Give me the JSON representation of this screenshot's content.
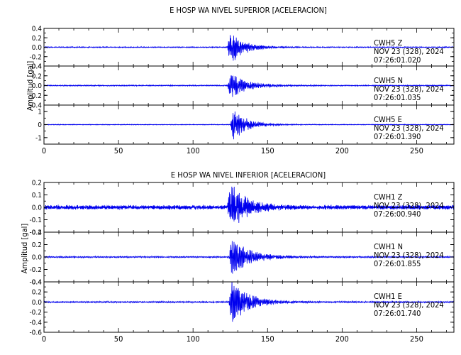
{
  "figure": {
    "title_top": "E HOSP WA NIVEL SUPERIOR [ACELERACION]",
    "title_bottom": "E HOSP WA NIVEL INFERIOR [ACELERACION]",
    "ylabel_top": "Amplitud [gal]",
    "ylabel_bottom": "Amplitud [gal]",
    "trace_color": "#0000ee",
    "axis_color": "#000000"
  },
  "chart_data": [
    {
      "type": "line",
      "group": "top",
      "title": "E HOSP WA NIVEL SUPERIOR [ACELERACION]",
      "station": "CWH5",
      "component": "Z",
      "date": "NOV 23 (328), 2024",
      "time": "07:26:01.020",
      "xlim": [
        0,
        275
      ],
      "ylim": [
        -0.4,
        0.4
      ],
      "yticks": [
        -0.4,
        -0.2,
        0.0,
        0.2,
        0.4
      ],
      "xticks": [
        0,
        50,
        100,
        150,
        200,
        250
      ],
      "show_xticklabels": false,
      "noise": 0.012,
      "onset": 123,
      "peak": 0.38,
      "decay": 9,
      "osc_period": 0.6
    },
    {
      "type": "line",
      "group": "top",
      "station": "CWH5",
      "component": "N",
      "date": "NOV 23 (328), 2024",
      "time": "07:26:01.035",
      "xlim": [
        0,
        275
      ],
      "ylim": [
        -0.4,
        0.4
      ],
      "yticks": [
        -0.4,
        -0.2,
        0.0,
        0.2,
        0.4
      ],
      "xticks": [
        0,
        50,
        100,
        150,
        200,
        250
      ],
      "show_xticklabels": false,
      "noise": 0.012,
      "onset": 123,
      "peak": 0.27,
      "decay": 11,
      "osc_period": 0.7
    },
    {
      "type": "line",
      "group": "top",
      "station": "CWH5",
      "component": "E",
      "date": "NOV 23 (328), 2024",
      "time": "07:26:01.390",
      "xlim": [
        0,
        275
      ],
      "ylim": [
        -1.5,
        1.5
      ],
      "yticks": [
        -1,
        0,
        1
      ],
      "xticks": [
        0,
        50,
        100,
        150,
        200,
        250
      ],
      "show_xticklabels": true,
      "noise": 0.03,
      "onset": 125,
      "peak": 1.3,
      "decay": 9,
      "osc_period": 0.65
    },
    {
      "type": "line",
      "group": "bottom",
      "title": "E HOSP WA NIVEL INFERIOR [ACELERACION]",
      "station": "CWH1",
      "component": "Z",
      "date": "NOV 23 (328), 2024",
      "time": "07:26:00.940",
      "xlim": [
        0,
        275
      ],
      "ylim": [
        -0.2,
        0.2
      ],
      "yticks": [
        -0.2,
        -0.1,
        0.0,
        0.1,
        0.2
      ],
      "xticks": [
        0,
        50,
        100,
        150,
        200,
        250
      ],
      "show_xticklabels": false,
      "noise": 0.018,
      "onset": 123,
      "peak": 0.2,
      "decay": 10,
      "osc_period": 0.55
    },
    {
      "type": "line",
      "group": "bottom",
      "station": "CWH1",
      "component": "N",
      "date": "NOV 23 (328), 2024",
      "time": "07:26:01.855",
      "xlim": [
        0,
        275
      ],
      "ylim": [
        -0.4,
        0.4
      ],
      "yticks": [
        -0.4,
        -0.2,
        0.0,
        0.2,
        0.4
      ],
      "xticks": [
        0,
        50,
        100,
        150,
        200,
        250
      ],
      "show_xticklabels": false,
      "noise": 0.012,
      "onset": 124,
      "peak": 0.3,
      "decay": 12,
      "osc_period": 0.7
    },
    {
      "type": "line",
      "group": "bottom",
      "station": "CWH1",
      "component": "E",
      "date": "NOV 23 (328), 2024",
      "time": "07:26:01.740",
      "xlim": [
        0,
        275
      ],
      "ylim": [
        -0.6,
        0.4
      ],
      "yticks": [
        -0.6,
        -0.4,
        -0.2,
        0.0,
        0.2,
        0.4
      ],
      "xticks": [
        0,
        50,
        100,
        150,
        200,
        250
      ],
      "show_xticklabels": true,
      "noise": 0.015,
      "onset": 124,
      "peak": 0.45,
      "decay": 11,
      "osc_period": 0.7
    }
  ]
}
